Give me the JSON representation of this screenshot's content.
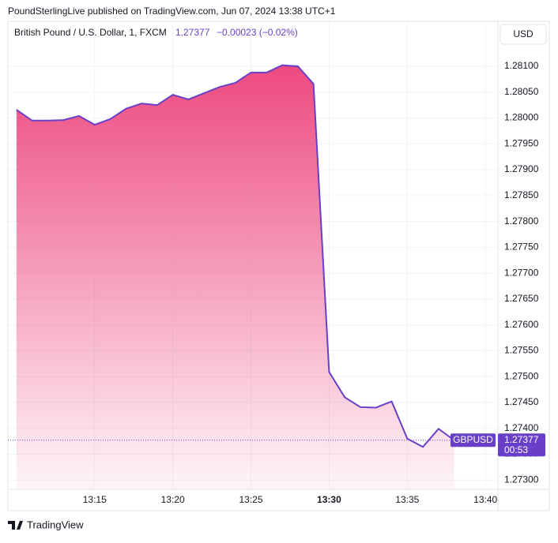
{
  "header": {
    "published": "PoundSterlingLive published on TradingView.com, Jun 07, 2024 13:38 UTC+1",
    "symbol": "British Pound / U.S. Dollar, 1, FXCM",
    "price": "1.27377",
    "change": "−0.00023 (−0.02%)",
    "currency": "USD"
  },
  "chart_data": {
    "type": "area",
    "color": "#6a3fc8",
    "fill": "#ec407a",
    "x": [
      "13:10",
      "13:11",
      "13:12",
      "13:13",
      "13:14",
      "13:15",
      "13:16",
      "13:17",
      "13:18",
      "13:19",
      "13:20",
      "13:21",
      "13:22",
      "13:23",
      "13:24",
      "13:25",
      "13:26",
      "13:27",
      "13:28",
      "13:29",
      "13:30",
      "13:31",
      "13:32",
      "13:33",
      "13:34",
      "13:35",
      "13:36",
      "13:37",
      "13:38"
    ],
    "values": [
      1.28016,
      1.27995,
      1.27995,
      1.27996,
      1.28004,
      1.27987,
      1.27998,
      1.28018,
      1.28028,
      1.28025,
      1.28045,
      1.28036,
      1.28048,
      1.2806,
      1.28068,
      1.28088,
      1.28088,
      1.28102,
      1.281,
      1.28066,
      1.27509,
      1.2746,
      1.27441,
      1.2744,
      1.27452,
      1.2738,
      1.27364,
      1.27399,
      1.27377
    ],
    "xticks": [
      "13:15",
      "13:20",
      "13:25",
      "13:30",
      "13:35",
      "13:40"
    ],
    "xlim": [
      "13:09.45",
      "13:40.8"
    ],
    "ylim": [
      1.27282,
      1.28187
    ],
    "yticks": [
      {
        "value": 1.273,
        "label": "1.27300"
      },
      {
        "value": 1.2735,
        "label": "1.27350"
      },
      {
        "value": 1.274,
        "label": "1.27400"
      },
      {
        "value": 1.2745,
        "label": "1.27450"
      },
      {
        "value": 1.275,
        "label": "1.27500"
      },
      {
        "value": 1.2755,
        "label": "1.27550"
      },
      {
        "value": 1.276,
        "label": "1.27600"
      },
      {
        "value": 1.2765,
        "label": "1.27650"
      },
      {
        "value": 1.277,
        "label": "1.27700"
      },
      {
        "value": 1.2775,
        "label": "1.27750"
      },
      {
        "value": 1.278,
        "label": "1.27800"
      },
      {
        "value": 1.2785,
        "label": "1.27850"
      },
      {
        "value": 1.279,
        "label": "1.27900"
      },
      {
        "value": 1.2795,
        "label": "1.27950"
      },
      {
        "value": 1.28,
        "label": "1.28000"
      },
      {
        "value": 1.2805,
        "label": "1.28050"
      },
      {
        "value": 1.281,
        "label": "1.28100"
      }
    ],
    "grid": true,
    "last_symbol": "GBPUSD",
    "last_value": 1.27377,
    "countdown": "00:53"
  },
  "footer": {
    "brand": "TradingView"
  }
}
